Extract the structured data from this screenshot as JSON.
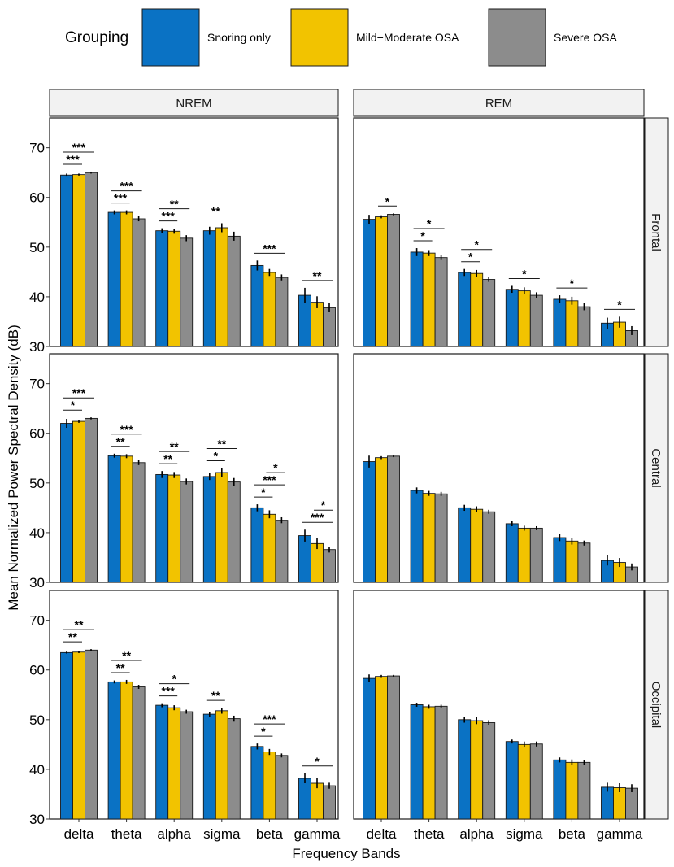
{
  "colors": {
    "snoring": "#0A72C4",
    "mild": "#F2C300",
    "severe": "#8C8C8C",
    "strip": "#F2F2F2",
    "border": "#1a1a1a"
  },
  "chart_data": {
    "type": "bar",
    "ylabel": "Mean Normalized Power Spectral Density (dB)",
    "xlabel": "Frequency Bands",
    "ylim": [
      30,
      76
    ],
    "yticks": [
      "30",
      "40",
      "50",
      "60",
      "70"
    ],
    "categories": [
      "delta",
      "theta",
      "alpha",
      "sigma",
      "beta",
      "gamma"
    ],
    "legend": {
      "title": "Grouping",
      "entries": [
        "Snoring only",
        "Mild−Moderate OSA",
        "Severe OSA"
      ]
    },
    "columns": [
      "NREM",
      "REM"
    ],
    "rows": [
      "Frontal",
      "Central",
      "Occipital"
    ],
    "panels": [
      {
        "col": 0,
        "row": 0,
        "series": [
          {
            "name": "Snoring only",
            "values": [
              64.5,
              57.0,
              53.3,
              53.3,
              46.3,
              40.3
            ],
            "err": [
              0.3,
              0.4,
              0.5,
              0.8,
              1.0,
              1.5
            ]
          },
          {
            "name": "Mild−Moderate OSA",
            "values": [
              64.6,
              57.0,
              53.2,
              53.9,
              44.9,
              38.9
            ],
            "err": [
              0.2,
              0.4,
              0.5,
              0.9,
              0.7,
              1.2
            ]
          },
          {
            "name": "Severe OSA",
            "values": [
              65.0,
              55.7,
              51.8,
              52.2,
              43.9,
              37.8
            ],
            "err": [
              0.2,
              0.5,
              0.6,
              0.9,
              0.6,
              0.9
            ]
          }
        ],
        "sig": [
          {
            "cat": 0,
            "pair": "sm",
            "label": "***",
            "level": 0
          },
          {
            "cat": 0,
            "pair": "ss",
            "label": "***",
            "level": 1
          },
          {
            "cat": 1,
            "pair": "sm",
            "label": "***",
            "level": 0
          },
          {
            "cat": 1,
            "pair": "ss",
            "label": "***",
            "level": 1
          },
          {
            "cat": 2,
            "pair": "sm",
            "label": "***",
            "level": 0
          },
          {
            "cat": 2,
            "pair": "ss",
            "label": "**",
            "level": 1
          },
          {
            "cat": 3,
            "pair": "sm",
            "label": "**",
            "level": 0
          },
          {
            "cat": 4,
            "pair": "ss",
            "label": "***",
            "level": 0
          },
          {
            "cat": 5,
            "pair": "ss",
            "label": "**",
            "level": 0
          }
        ]
      },
      {
        "col": 1,
        "row": 0,
        "series": [
          {
            "name": "Snoring only",
            "values": [
              55.6,
              49.0,
              44.9,
              41.5,
              39.5,
              34.7
            ],
            "err": [
              0.9,
              0.8,
              0.7,
              0.7,
              0.8,
              1.1
            ]
          },
          {
            "name": "Mild−Moderate OSA",
            "values": [
              56.1,
              48.8,
              44.7,
              41.2,
              39.2,
              34.9
            ],
            "err": [
              0.3,
              0.6,
              0.7,
              0.7,
              0.8,
              1.1
            ]
          },
          {
            "name": "Severe OSA",
            "values": [
              56.6,
              47.9,
              43.5,
              40.3,
              38.0,
              33.2
            ],
            "err": [
              0.2,
              0.5,
              0.5,
              0.6,
              0.7,
              0.9
            ]
          }
        ],
        "sig": [
          {
            "cat": 0,
            "pair": "ms",
            "label": "*",
            "level": 0
          },
          {
            "cat": 1,
            "pair": "sm",
            "label": "*",
            "level": 0
          },
          {
            "cat": 1,
            "pair": "ss",
            "label": "*",
            "level": 1
          },
          {
            "cat": 2,
            "pair": "sm",
            "label": "*",
            "level": 0
          },
          {
            "cat": 2,
            "pair": "ss",
            "label": "*",
            "level": 1
          },
          {
            "cat": 3,
            "pair": "ss",
            "label": "*",
            "level": 0
          },
          {
            "cat": 4,
            "pair": "ss",
            "label": "*",
            "level": 0
          },
          {
            "cat": 5,
            "pair": "ss",
            "label": "*",
            "level": 0
          }
        ]
      },
      {
        "col": 0,
        "row": 1,
        "series": [
          {
            "name": "Snoring only",
            "values": [
              62.0,
              55.5,
              51.7,
              51.3,
              45.0,
              39.4
            ],
            "err": [
              0.9,
              0.4,
              0.7,
              0.7,
              0.7,
              1.2
            ]
          },
          {
            "name": "Mild−Moderate OSA",
            "values": [
              62.4,
              55.4,
              51.6,
              52.1,
              43.7,
              37.8
            ],
            "err": [
              0.3,
              0.4,
              0.6,
              0.9,
              0.8,
              1.1
            ]
          },
          {
            "name": "Severe OSA",
            "values": [
              63.0,
              54.1,
              50.3,
              50.2,
              42.5,
              36.6
            ],
            "err": [
              0.2,
              0.5,
              0.6,
              0.8,
              0.6,
              0.6
            ]
          }
        ],
        "sig": [
          {
            "cat": 0,
            "pair": "sm",
            "label": "*",
            "level": 0
          },
          {
            "cat": 0,
            "pair": "ss",
            "label": "***",
            "level": 1
          },
          {
            "cat": 1,
            "pair": "sm",
            "label": "**",
            "level": 0
          },
          {
            "cat": 1,
            "pair": "ss",
            "label": "***",
            "level": 1
          },
          {
            "cat": 2,
            "pair": "sm",
            "label": "**",
            "level": 0
          },
          {
            "cat": 2,
            "pair": "ss",
            "label": "**",
            "level": 1
          },
          {
            "cat": 3,
            "pair": "sm",
            "label": "*",
            "level": 0
          },
          {
            "cat": 3,
            "pair": "ss",
            "label": "**",
            "level": 1
          },
          {
            "cat": 4,
            "pair": "sm",
            "label": "*",
            "level": 0
          },
          {
            "cat": 4,
            "pair": "ss",
            "label": "***",
            "level": 1
          },
          {
            "cat": 4,
            "pair": "ms",
            "label": "*",
            "level": 2
          },
          {
            "cat": 5,
            "pair": "ss",
            "label": "***",
            "level": 0
          },
          {
            "cat": 5,
            "pair": "ms",
            "label": "*",
            "level": 1
          }
        ]
      },
      {
        "col": 1,
        "row": 1,
        "series": [
          {
            "name": "Snoring only",
            "values": [
              54.3,
              48.5,
              45.0,
              41.8,
              39.0,
              34.4
            ],
            "err": [
              1.2,
              0.6,
              0.6,
              0.5,
              0.7,
              1.0
            ]
          },
          {
            "name": "Mild−Moderate OSA",
            "values": [
              55.1,
              47.9,
              44.7,
              40.9,
              38.3,
              34.0
            ],
            "err": [
              0.3,
              0.5,
              0.6,
              0.5,
              0.7,
              0.9
            ]
          },
          {
            "name": "Severe OSA",
            "values": [
              55.4,
              47.8,
              44.2,
              40.9,
              37.9,
              33.1
            ],
            "err": [
              0.2,
              0.4,
              0.4,
              0.4,
              0.5,
              0.7
            ]
          }
        ],
        "sig": []
      },
      {
        "col": 0,
        "row": 2,
        "series": [
          {
            "name": "Snoring only",
            "values": [
              63.5,
              57.6,
              52.9,
              51.1,
              44.6,
              38.2
            ],
            "err": [
              0.2,
              0.3,
              0.4,
              0.5,
              0.6,
              1.0
            ]
          },
          {
            "name": "Mild−Moderate OSA",
            "values": [
              63.6,
              57.6,
              52.4,
              51.8,
              43.5,
              37.2
            ],
            "err": [
              0.2,
              0.4,
              0.5,
              0.6,
              0.6,
              1.0
            ]
          },
          {
            "name": "Severe OSA",
            "values": [
              64.0,
              56.6,
              51.6,
              50.2,
              42.8,
              36.7
            ],
            "err": [
              0.2,
              0.4,
              0.4,
              0.6,
              0.4,
              0.6
            ]
          }
        ],
        "sig": [
          {
            "cat": 0,
            "pair": "sm",
            "label": "**",
            "level": 0
          },
          {
            "cat": 0,
            "pair": "ss",
            "label": "**",
            "level": 1
          },
          {
            "cat": 1,
            "pair": "sm",
            "label": "**",
            "level": 0
          },
          {
            "cat": 1,
            "pair": "ss",
            "label": "**",
            "level": 1
          },
          {
            "cat": 2,
            "pair": "sm",
            "label": "***",
            "level": 0
          },
          {
            "cat": 2,
            "pair": "ss",
            "label": "*",
            "level": 1
          },
          {
            "cat": 3,
            "pair": "sm",
            "label": "**",
            "level": 0
          },
          {
            "cat": 4,
            "pair": "sm",
            "label": "*",
            "level": 0
          },
          {
            "cat": 4,
            "pair": "ss",
            "label": "***",
            "level": 1
          },
          {
            "cat": 5,
            "pair": "ss",
            "label": "*",
            "level": 0
          }
        ]
      },
      {
        "col": 1,
        "row": 2,
        "series": [
          {
            "name": "Snoring only",
            "values": [
              58.3,
              53.0,
              50.0,
              45.6,
              41.9,
              36.4
            ],
            "err": [
              0.8,
              0.4,
              0.6,
              0.4,
              0.5,
              0.9
            ]
          },
          {
            "name": "Mild−Moderate OSA",
            "values": [
              58.7,
              52.6,
              49.8,
              45.0,
              41.4,
              36.3
            ],
            "err": [
              0.3,
              0.4,
              0.7,
              0.6,
              0.6,
              0.9
            ]
          },
          {
            "name": "Severe OSA",
            "values": [
              58.8,
              52.7,
              49.4,
              45.1,
              41.4,
              36.2
            ],
            "err": [
              0.2,
              0.3,
              0.5,
              0.5,
              0.5,
              0.8
            ]
          }
        ],
        "sig": []
      }
    ]
  }
}
